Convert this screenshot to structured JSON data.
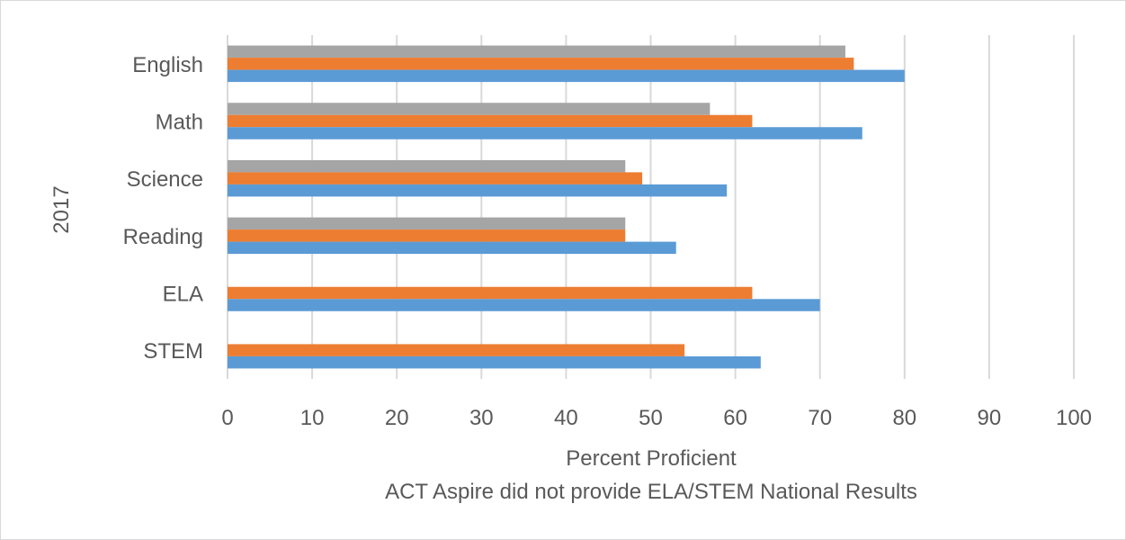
{
  "chart_data": {
    "type": "bar",
    "orientation": "horizontal",
    "categories": [
      "English",
      "Math",
      "Science",
      "Reading",
      "ELA",
      "STEM"
    ],
    "series": [
      {
        "color": "#a5a5a5",
        "values": [
          73,
          57,
          47,
          47,
          null,
          null
        ]
      },
      {
        "color": "#ed7d31",
        "values": [
          74,
          62,
          49,
          47,
          62,
          54
        ]
      },
      {
        "color": "#5b9bd5",
        "values": [
          80,
          75,
          59,
          53,
          70,
          63
        ]
      }
    ],
    "xlim": [
      0,
      100
    ],
    "xticks": [
      "0",
      "10",
      "20",
      "30",
      "40",
      "50",
      "60",
      "70",
      "80",
      "90",
      "100"
    ],
    "xlabel": "Percent Proficient",
    "note": "ACT Aspire did not provide ELA/STEM National Results",
    "ylabel": "2017",
    "grid": "vertical"
  }
}
